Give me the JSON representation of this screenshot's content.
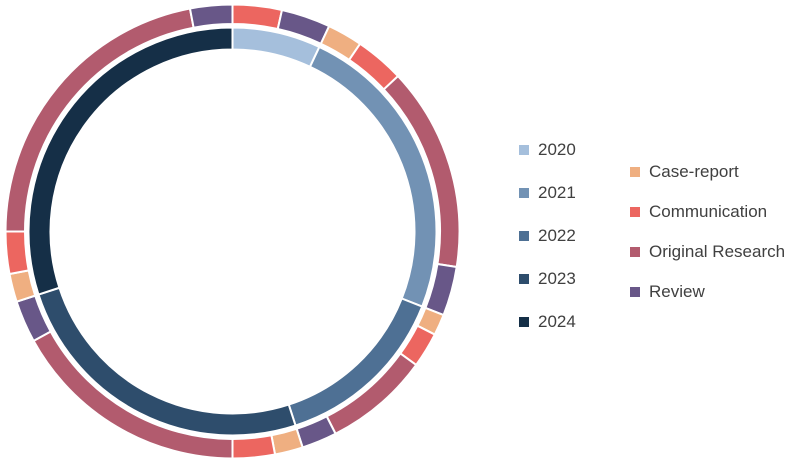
{
  "page": {
    "background_color": "#ffffff",
    "legend_text_color": "#404040"
  },
  "chart_data": {
    "type": "pie",
    "variant": "nested-double-ring-donut",
    "unit": "percent-of-total",
    "legend_position": "right",
    "start_angle_deg": 0,
    "direction": "clockwise",
    "inner_ring": {
      "name": "year",
      "categories": [
        "2020",
        "2021",
        "2022",
        "2023",
        "2024"
      ],
      "values": [
        7,
        24,
        14,
        25,
        30
      ],
      "colors": [
        "#A5BFDC",
        "#7292B4",
        "#4E7094",
        "#2E4D6C",
        "#152F47"
      ]
    },
    "outer_ring": {
      "name": "publication-type",
      "types": [
        {
          "label": "Case-report",
          "color": "#EFAF81"
        },
        {
          "label": "Communication",
          "color": "#EC6660"
        },
        {
          "label": "Original Research",
          "color": "#B25B6E"
        },
        {
          "label": "Review",
          "color": "#685788"
        }
      ],
      "segments": [
        {
          "year": "2020",
          "type": "Communication",
          "value": 3.5
        },
        {
          "year": "2020",
          "type": "Review",
          "value": 3.5
        },
        {
          "year": "2021",
          "type": "Case-report",
          "value": 2.5
        },
        {
          "year": "2021",
          "type": "Communication",
          "value": 3.5
        },
        {
          "year": "2021",
          "type": "Original Research",
          "value": 14.5
        },
        {
          "year": "2021",
          "type": "Review",
          "value": 3.5
        },
        {
          "year": "2022",
          "type": "Case-report",
          "value": 1.5
        },
        {
          "year": "2022",
          "type": "Communication",
          "value": 2.5
        },
        {
          "year": "2022",
          "type": "Original Research",
          "value": 7.5
        },
        {
          "year": "2022",
          "type": "Review",
          "value": 2.5
        },
        {
          "year": "2023",
          "type": "Case-report",
          "value": 2
        },
        {
          "year": "2023",
          "type": "Communication",
          "value": 3
        },
        {
          "year": "2023",
          "type": "Original Research",
          "value": 17
        },
        {
          "year": "2023",
          "type": "Review",
          "value": 3
        },
        {
          "year": "2024",
          "type": "Case-report",
          "value": 2
        },
        {
          "year": "2024",
          "type": "Communication",
          "value": 3
        },
        {
          "year": "2024",
          "type": "Original Research",
          "value": 22
        },
        {
          "year": "2024",
          "type": "Review",
          "value": 3
        }
      ]
    },
    "geometry": {
      "center": 231.5,
      "outer_ring_outer_radius": 227,
      "outer_ring_inner_radius": 207.5,
      "inner_ring_outer_radius": 204,
      "inner_ring_inner_radius": 182,
      "separator_color": "#ffffff",
      "separator_width": 2
    }
  }
}
